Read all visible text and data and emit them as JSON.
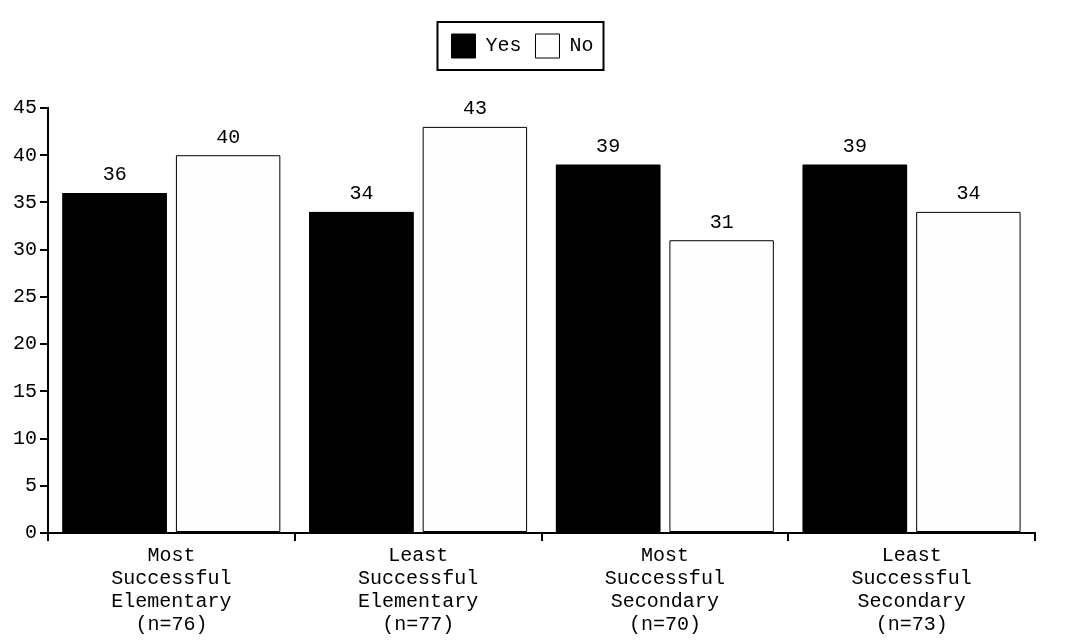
{
  "chart_data": {
    "type": "bar",
    "categories": [
      "Most\nSuccessful\nElementary\n(n=76)",
      "Least\nSuccessful\nElementary\n(n=77)",
      "Most\nSuccessful\nSecondary\n(n=70)",
      "Least\nSuccessful\nSecondary\n(n=73)"
    ],
    "series": [
      {
        "name": "Yes",
        "color": "#000000",
        "values": [
          36,
          34,
          39,
          39
        ]
      },
      {
        "name": "No",
        "color": "#fefefe",
        "values": [
          40,
          43,
          31,
          34
        ]
      }
    ],
    "ylim": [
      0,
      45
    ],
    "yticks": [
      0,
      5,
      10,
      15,
      20,
      25,
      30,
      35,
      40,
      45
    ],
    "grid": false,
    "legend": "top",
    "data_labels": true
  }
}
